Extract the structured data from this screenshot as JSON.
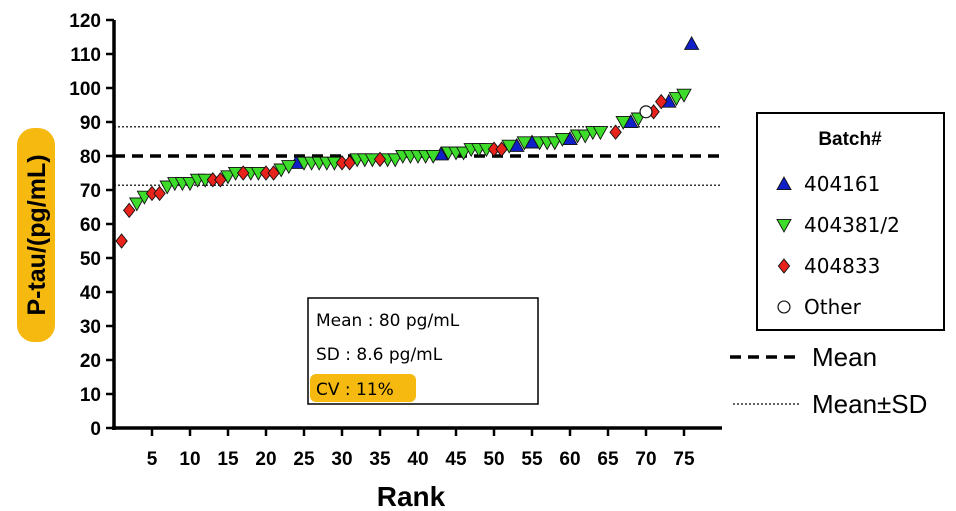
{
  "chart_data": {
    "type": "scatter",
    "xlabel": "Rank",
    "ylabel": "P-tau/(pg/mL)",
    "xlim": [
      0,
      80
    ],
    "ylim": [
      0,
      120
    ],
    "x_ticks": [
      5,
      10,
      15,
      20,
      25,
      30,
      35,
      40,
      45,
      50,
      55,
      60,
      65,
      70,
      75
    ],
    "y_ticks": [
      0,
      10,
      20,
      30,
      40,
      50,
      60,
      70,
      80,
      90,
      100,
      110,
      120
    ],
    "grid": false,
    "reference_lines": {
      "mean": 80,
      "mean_minus_sd": 71.4,
      "mean_plus_sd": 88.6
    },
    "stats_box": {
      "mean": "Mean : 80 pg/mL",
      "sd": "SD : 8.6 pg/mL",
      "cv": "CV : 11%"
    },
    "legend": {
      "title": "Batch#",
      "placement": "right"
    },
    "line_legend": {
      "mean": "Mean",
      "mean_sd": "Mean±SD"
    },
    "highlight_color": "#f5b90f",
    "series": [
      {
        "name": "404161",
        "marker": "triangle-up",
        "color": "#1020c8",
        "points": [
          [
            24,
            78
          ],
          [
            43,
            80.5
          ],
          [
            53,
            83
          ],
          [
            55,
            84
          ],
          [
            60,
            85
          ],
          [
            68,
            90
          ],
          [
            73,
            96
          ],
          [
            76,
            113
          ]
        ]
      },
      {
        "name": "404381/2",
        "marker": "triangle-down",
        "color": "#3ddc2a",
        "points": [
          [
            3,
            66
          ],
          [
            4,
            68
          ],
          [
            7,
            71
          ],
          [
            8,
            72
          ],
          [
            9,
            72
          ],
          [
            10,
            72
          ],
          [
            11,
            73
          ],
          [
            12,
            73
          ],
          [
            15,
            74
          ],
          [
            16,
            75
          ],
          [
            18,
            75
          ],
          [
            19,
            75
          ],
          [
            22,
            76
          ],
          [
            23,
            77
          ],
          [
            25,
            78
          ],
          [
            26,
            78
          ],
          [
            27,
            78
          ],
          [
            28,
            78
          ],
          [
            29,
            78
          ],
          [
            32,
            79
          ],
          [
            33,
            79
          ],
          [
            34,
            79
          ],
          [
            36,
            79
          ],
          [
            37,
            79
          ],
          [
            38,
            80
          ],
          [
            39,
            80
          ],
          [
            40,
            80
          ],
          [
            41,
            80
          ],
          [
            42,
            80
          ],
          [
            44,
            81
          ],
          [
            45,
            81
          ],
          [
            46,
            81
          ],
          [
            47,
            82
          ],
          [
            48,
            82
          ],
          [
            49,
            82
          ],
          [
            52,
            83
          ],
          [
            54,
            84
          ],
          [
            56,
            84
          ],
          [
            57,
            84
          ],
          [
            58,
            84
          ],
          [
            59,
            85
          ],
          [
            61,
            86
          ],
          [
            62,
            86
          ],
          [
            63,
            87
          ],
          [
            64,
            87
          ],
          [
            67,
            90
          ],
          [
            69,
            91
          ],
          [
            74,
            97
          ],
          [
            75,
            98
          ]
        ]
      },
      {
        "name": "404833",
        "marker": "diamond",
        "color": "#e8231c",
        "points": [
          [
            1,
            55
          ],
          [
            2,
            64
          ],
          [
            5,
            69
          ],
          [
            6,
            69
          ],
          [
            13,
            73
          ],
          [
            14,
            73
          ],
          [
            17,
            75
          ],
          [
            20,
            75
          ],
          [
            21,
            75
          ],
          [
            30,
            78
          ],
          [
            31,
            78
          ],
          [
            35,
            79
          ],
          [
            50,
            82
          ],
          [
            51,
            82
          ],
          [
            66,
            87
          ],
          [
            71,
            93
          ],
          [
            72,
            96
          ]
        ]
      },
      {
        "name": "Other",
        "marker": "circle-open",
        "color": "#ffffff",
        "points": [
          [
            70,
            93
          ]
        ]
      }
    ]
  }
}
